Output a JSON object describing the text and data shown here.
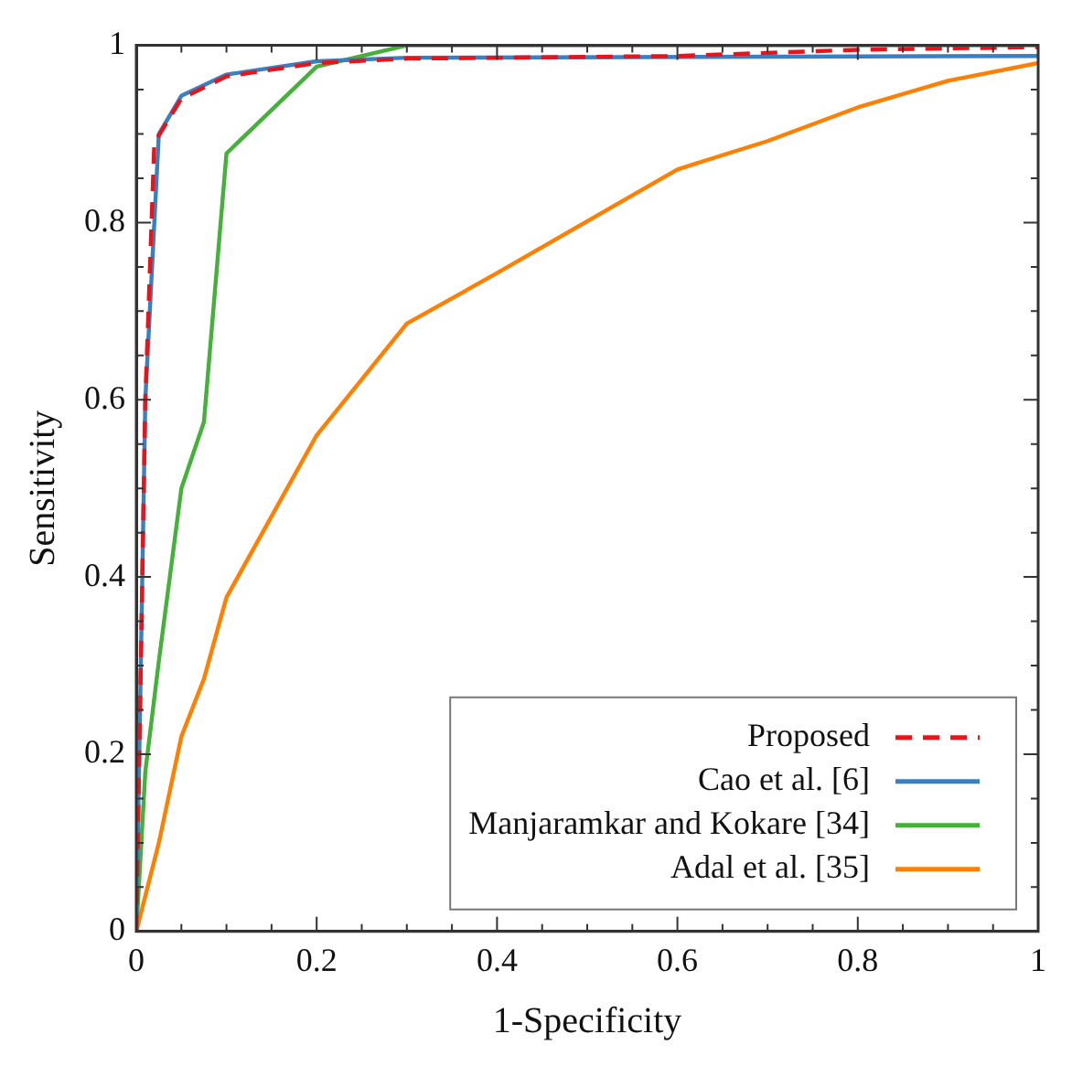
{
  "chart_data": {
    "type": "line",
    "xlabel": "1-Specificity",
    "ylabel": "Sensitivity",
    "xlim": [
      0,
      1
    ],
    "ylim": [
      0,
      1
    ],
    "xticks": [
      0,
      {
        "value": 0.05,
        "label": null
      },
      {
        "value": 0.1,
        "label": null
      },
      {
        "value": 0.15,
        "label": null
      },
      0.2,
      {
        "value": 0.25,
        "label": null
      },
      {
        "value": 0.3,
        "label": null
      },
      {
        "value": 0.35,
        "label": null
      },
      0.4,
      {
        "value": 0.45,
        "label": null
      },
      {
        "value": 0.5,
        "label": null
      },
      {
        "value": 0.55,
        "label": null
      },
      0.6,
      {
        "value": 0.65,
        "label": null
      },
      {
        "value": 0.7,
        "label": null
      },
      {
        "value": 0.75,
        "label": null
      },
      0.8,
      {
        "value": 0.85,
        "label": null
      },
      {
        "value": 0.9,
        "label": null
      },
      {
        "value": 0.95,
        "label": null
      },
      1
    ],
    "yticks": [
      0,
      {
        "value": 0.05,
        "label": null
      },
      {
        "value": 0.1,
        "label": null
      },
      {
        "value": 0.15,
        "label": null
      },
      0.2,
      {
        "value": 0.25,
        "label": null
      },
      {
        "value": 0.3,
        "label": null
      },
      {
        "value": 0.35,
        "label": null
      },
      0.4,
      {
        "value": 0.45,
        "label": null
      },
      {
        "value": 0.5,
        "label": null
      },
      {
        "value": 0.55,
        "label": null
      },
      0.6,
      {
        "value": 0.65,
        "label": null
      },
      {
        "value": 0.7,
        "label": null
      },
      {
        "value": 0.75,
        "label": null
      },
      0.8,
      {
        "value": 0.85,
        "label": null
      },
      {
        "value": 0.9,
        "label": null
      },
      {
        "value": 0.95,
        "label": null
      },
      1
    ],
    "grid": false,
    "legend": "bottom right",
    "marker": "none",
    "series": [
      {
        "name": "Proposed",
        "color": "#e8141c",
        "line_style": "dashed",
        "x": [
          0,
          0.005,
          0.01,
          0.02,
          0.05,
          0.1,
          0.2,
          0.3,
          0.6,
          0.8,
          1
        ],
        "values": [
          0,
          0.3,
          0.6,
          0.89,
          0.94,
          0.965,
          0.98,
          0.985,
          0.988,
          0.995,
          0.998
        ]
      },
      {
        "name": "Cao et al. [6]",
        "color": "#3a7fc0",
        "line_style": "solid",
        "x": [
          0,
          0.005,
          0.01,
          0.025,
          0.05,
          0.1,
          0.2,
          0.3,
          1
        ],
        "values": [
          0,
          0.3,
          0.6,
          0.9,
          0.943,
          0.967,
          0.982,
          0.986,
          0.988
        ]
      },
      {
        "name": "Manjaramkar and Kokare [34]",
        "color": "#45b03a",
        "line_style": "solid",
        "x": [
          0,
          0.01,
          0.025,
          0.05,
          0.075,
          0.1,
          0.2,
          0.3,
          1
        ],
        "values": [
          0,
          0.18,
          0.305,
          0.5,
          0.575,
          0.878,
          0.976,
          1,
          1
        ]
      },
      {
        "name": "Adal et al. [35]",
        "color": "#ff8000",
        "line_style": "solid",
        "x": [
          0,
          0.025,
          0.05,
          0.075,
          0.1,
          0.2,
          0.3,
          0.4,
          0.6,
          0.7,
          0.8,
          0.9,
          1
        ],
        "values": [
          0,
          0.1,
          0.22,
          0.285,
          0.377,
          0.56,
          0.686,
          0.743,
          0.86,
          0.892,
          0.93,
          0.96,
          0.98
        ]
      }
    ]
  }
}
